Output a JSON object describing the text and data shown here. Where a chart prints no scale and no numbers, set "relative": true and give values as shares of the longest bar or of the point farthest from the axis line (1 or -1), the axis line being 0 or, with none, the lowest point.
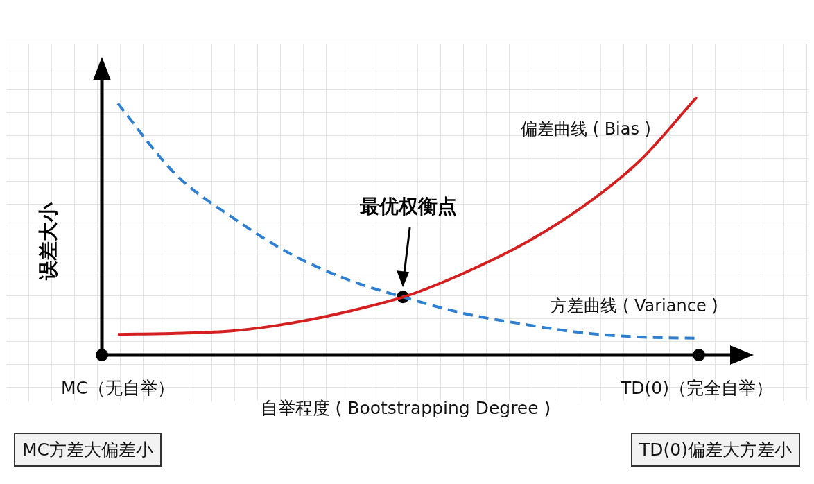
{
  "chart_data": {
    "type": "line",
    "relative": true,
    "xlabel": "自举程度 ( Bootstrapping Degree )",
    "ylabel": "误差大小",
    "categories": [
      "MC（无自举）",
      null,
      null,
      null,
      null,
      null,
      null,
      null,
      null,
      null,
      "TD(0)（完全自举）"
    ],
    "series": [
      {
        "name": "偏差曲线 ( Bias )",
        "color": "#d42020",
        "line_style": "solid",
        "values": [
          0.08,
          0.084,
          0.094,
          0.124,
          0.17,
          0.23,
          0.32,
          0.43,
          0.57,
          0.75,
          1
        ]
      },
      {
        "name": "方差曲线 ( Variance )",
        "color": "#2f80d0",
        "line_style": "dashed",
        "values": [
          0.975,
          0.7,
          0.53,
          0.39,
          0.29,
          0.22,
          0.16,
          0.12,
          0.087,
          0.07,
          0.065
        ]
      }
    ],
    "marker": "none",
    "legend": false,
    "annotations": [
      "最优权衡点",
      "MC方差大偏差小",
      "TD(0)偏差大方差小"
    ]
  }
}
